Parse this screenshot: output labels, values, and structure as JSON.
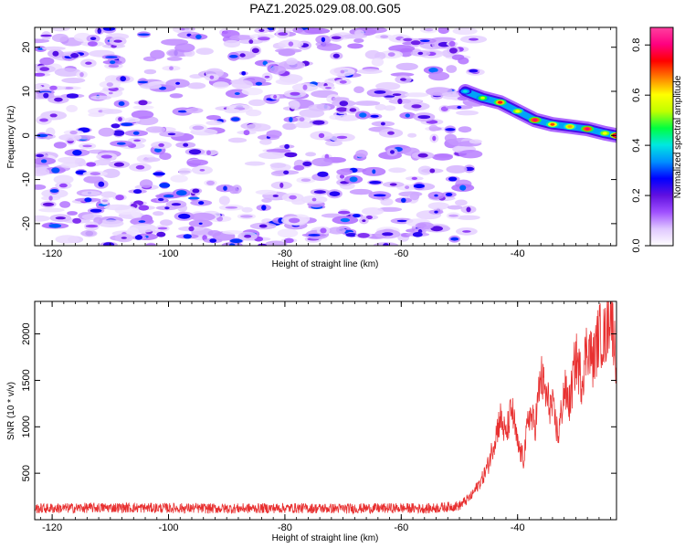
{
  "title": "PAZ1.2025.029.08.00.G05",
  "chart_data": [
    {
      "type": "heatmap",
      "xlabel": "Height of straight line (km)",
      "ylabel": "Frequency (Hz)",
      "xlim": [
        -123,
        -23
      ],
      "ylim": [
        -25,
        24.5
      ],
      "xticks": [
        -120,
        -100,
        -80,
        -60,
        -40
      ],
      "yticks": [
        -20,
        -10,
        0,
        10,
        20
      ],
      "colorbar": {
        "label": "Normalized spectral amplitude",
        "range": [
          0,
          0.87
        ],
        "ticks": [
          0.0,
          0.2,
          0.4,
          0.6,
          0.8
        ],
        "colormap": [
          "#ffffff",
          "#e0c8ff",
          "#a050ff",
          "#6010e0",
          "#0000ff",
          "#0090ff",
          "#00e8e0",
          "#00ff40",
          "#c0ff00",
          "#ffff00",
          "#ff8000",
          "#ff0000",
          "#ff0080",
          "#ff40a0"
        ]
      },
      "noise_region": {
        "x_from": -123,
        "x_to": -47,
        "level_range": [
          0.05,
          0.2
        ]
      },
      "signal_ridge": {
        "x": [
          -49,
          -46,
          -43,
          -40,
          -37,
          -34,
          -31,
          -28,
          -25,
          -23
        ],
        "frequency": [
          10,
          8.5,
          7.5,
          5.5,
          3.5,
          2.5,
          2,
          1.5,
          0.5,
          0
        ],
        "amplitude": [
          0.4,
          0.55,
          0.75,
          0.6,
          0.8,
          0.7,
          0.65,
          0.8,
          0.6,
          0.87
        ]
      }
    },
    {
      "type": "line",
      "xlabel": "Height of straight line (km)",
      "ylabel": "SNR (10 * v/v)",
      "xlim": [
        -123,
        -23
      ],
      "ylim": [
        0,
        2350
      ],
      "xticks": [
        -120,
        -100,
        -80,
        -60,
        -40
      ],
      "yticks": [
        500,
        1000,
        1500,
        2000
      ],
      "series": [
        {
          "color": "#e83030",
          "x": [
            -123,
            -110,
            -100,
            -90,
            -80,
            -70,
            -60,
            -55,
            -50,
            -48,
            -46,
            -45,
            -44,
            -43,
            -42,
            -41,
            -40,
            -39,
            -38,
            -37,
            -36,
            -35,
            -34,
            -33,
            -32,
            -31,
            -30,
            -29,
            -28,
            -27,
            -26,
            -25,
            -24,
            -23
          ],
          "y": [
            120,
            130,
            125,
            120,
            125,
            120,
            125,
            120,
            150,
            250,
            450,
            600,
            850,
            1100,
            900,
            1200,
            800,
            650,
            1150,
            1000,
            1550,
            1300,
            1200,
            900,
            1400,
            1250,
            1750,
            1500,
            1900,
            1700,
            2000,
            1950,
            2300,
            1700
          ]
        }
      ]
    }
  ]
}
